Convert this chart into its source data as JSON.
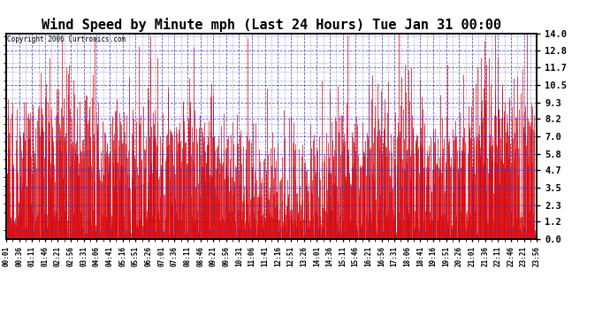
{
  "title": "Wind Speed by Minute mph (Last 24 Hours) Tue Jan 31 00:00",
  "copyright": "Copyright 2006 Curtronics.com",
  "yticks": [
    0.0,
    1.2,
    2.3,
    3.5,
    4.7,
    5.8,
    7.0,
    8.2,
    9.3,
    10.5,
    11.7,
    12.8,
    14.0
  ],
  "ymin": 0.0,
  "ymax": 14.0,
  "bar_color": "#dd0000",
  "grid_color": "#3333cc",
  "bg_color": "#ffffff",
  "title_fontsize": 11,
  "xtick_labels": [
    "00:01",
    "00:36",
    "01:11",
    "01:46",
    "02:21",
    "02:56",
    "03:31",
    "04:06",
    "04:41",
    "05:16",
    "05:51",
    "06:26",
    "07:01",
    "07:36",
    "08:11",
    "08:46",
    "09:21",
    "09:56",
    "10:31",
    "11:06",
    "11:41",
    "12:16",
    "12:51",
    "13:26",
    "14:01",
    "14:36",
    "15:11",
    "15:46",
    "16:21",
    "16:56",
    "17:31",
    "18:06",
    "18:41",
    "19:16",
    "19:51",
    "20:26",
    "21:01",
    "21:36",
    "22:11",
    "22:46",
    "23:21",
    "23:56"
  ],
  "seed": 12345
}
